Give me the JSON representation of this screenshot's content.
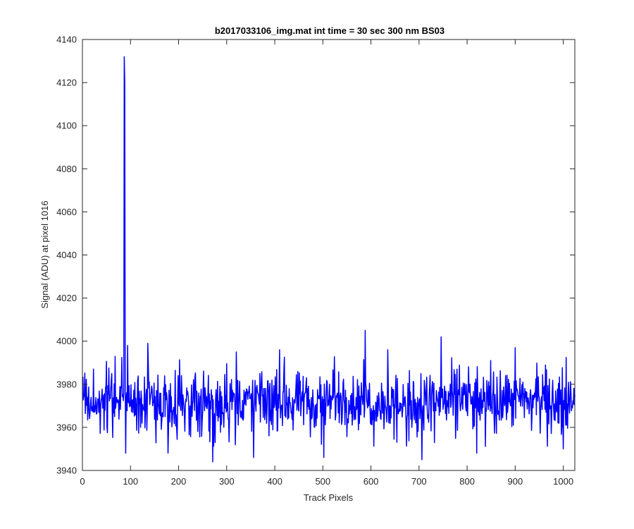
{
  "chart_data": {
    "type": "line",
    "title": "b2017033106_img.mat int time = 30 sec  300 nm BS03",
    "xlabel": "Track Pixels",
    "ylabel": "Signal (ADU) at pixel 1016",
    "xlim": [
      0,
      1024
    ],
    "ylim": [
      3940,
      4140
    ],
    "xticks": [
      0,
      100,
      200,
      300,
      400,
      500,
      600,
      700,
      800,
      900,
      1000
    ],
    "yticks": [
      3940,
      3960,
      3980,
      4000,
      4020,
      4040,
      4060,
      4080,
      4100,
      4120,
      4140
    ],
    "grid": false,
    "line_color": "#0000ff",
    "series": [
      {
        "name": "",
        "baseline_mean": 3972,
        "noise_half_range": 11,
        "spikes": [
          {
            "x": 87,
            "y": 4132
          },
          {
            "x": 88,
            "y": 4120
          },
          {
            "x": 90,
            "y": 3948
          },
          {
            "x": 94,
            "y": 3998
          },
          {
            "x": 136,
            "y": 3999
          },
          {
            "x": 178,
            "y": 3948
          },
          {
            "x": 271,
            "y": 3944
          },
          {
            "x": 320,
            "y": 3995
          },
          {
            "x": 356,
            "y": 3946
          },
          {
            "x": 410,
            "y": 3996
          },
          {
            "x": 502,
            "y": 3946
          },
          {
            "x": 588,
            "y": 4005
          },
          {
            "x": 635,
            "y": 3996
          },
          {
            "x": 706,
            "y": 3945
          },
          {
            "x": 746,
            "y": 4002
          },
          {
            "x": 820,
            "y": 3948
          },
          {
            "x": 900,
            "y": 3997
          },
          {
            "x": 1000,
            "y": 3950
          }
        ]
      }
    ]
  }
}
